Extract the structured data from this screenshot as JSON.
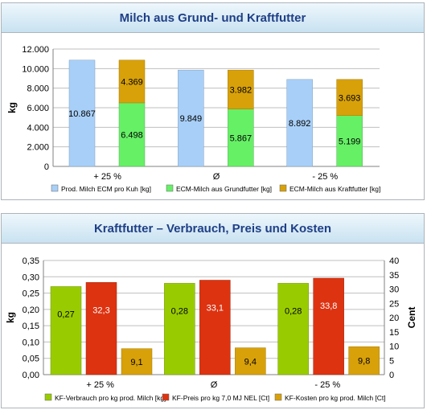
{
  "chart_data": [
    {
      "type": "bar",
      "title": "Milch aus Grund- und Kraftfutter",
      "ylabel": "kg",
      "ylim": [
        0,
        12000
      ],
      "yticks": [
        "0",
        "2.000",
        "4.000",
        "6.000",
        "8.000",
        "10.000",
        "12.000"
      ],
      "categories": [
        "+ 25 %",
        "Ø",
        "- 25 %"
      ],
      "series": [
        {
          "name": "Prod. Milch ECM pro Kuh [kg]",
          "values": [
            10867,
            9849,
            8892
          ],
          "labels": [
            "10.867",
            "9.849",
            "8.892"
          ],
          "color": "#a8cff7",
          "stack": "a"
        },
        {
          "name": "ECM-Milch aus Grundfutter [kg]",
          "values": [
            6498,
            5867,
            5199
          ],
          "labels": [
            "6.498",
            "5.867",
            "5.199"
          ],
          "color": "#66f066",
          "stack": "b"
        },
        {
          "name": "ECM-Milch aus Kraftfutter [kg]",
          "values": [
            4369,
            3982,
            3693
          ],
          "labels": [
            "4.369",
            "3.982",
            "3.693"
          ],
          "color": "#d8a10a",
          "stack": "b"
        }
      ],
      "grid": true,
      "legend": "bottom"
    },
    {
      "type": "bar",
      "title": "Kraftfutter – Verbrauch, Preis und Kosten",
      "ylabel": "kg",
      "ylabel_right": "Cent",
      "ylim": [
        0,
        0.35
      ],
      "ylim_right": [
        0,
        40
      ],
      "yticks": [
        "0,00",
        "0,05",
        "0,10",
        "0,15",
        "0,20",
        "0,25",
        "0,30",
        "0,35"
      ],
      "yticks_right": [
        "0",
        "5",
        "10",
        "15",
        "20",
        "25",
        "30",
        "35",
        "40"
      ],
      "categories": [
        "+ 25 %",
        "Ø",
        "- 25 %"
      ],
      "series": [
        {
          "name": "KF-Verbrauch pro kg prod. Milch [kg]",
          "values": [
            0.27,
            0.28,
            0.28
          ],
          "labels": [
            "0,27",
            "0,28",
            "0,28"
          ],
          "color": "#99cc00",
          "axis": "left"
        },
        {
          "name": "KF-Preis pro kg 7,0 MJ NEL [Ct]",
          "values": [
            32.3,
            33.1,
            33.8
          ],
          "labels": [
            "32,3",
            "33,1",
            "33,8"
          ],
          "color": "#dd3311",
          "axis": "right"
        },
        {
          "name": "KF-Kosten pro kg prod. Milch [Ct]",
          "values": [
            9.1,
            9.4,
            9.8
          ],
          "labels": [
            "9,1",
            "9,4",
            "9,8"
          ],
          "color": "#d8a10a",
          "axis": "right"
        }
      ],
      "grid": true,
      "legend": "bottom"
    }
  ]
}
